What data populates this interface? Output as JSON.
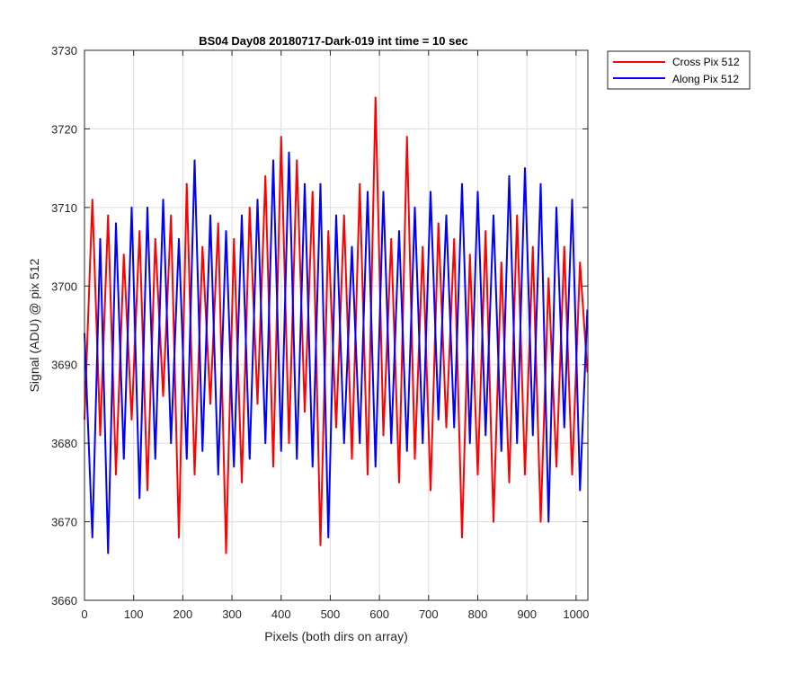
{
  "chart_data": {
    "type": "line",
    "title": "BS04 Day08 20180717-Dark-019 int time = 10 sec",
    "xlabel": "Pixels (both dirs on array)",
    "ylabel": "Signal (ADU) @ pix 512",
    "xlim": [
      0,
      1024
    ],
    "ylim": [
      3660,
      3730
    ],
    "xticks": [
      0,
      100,
      200,
      300,
      400,
      500,
      600,
      700,
      800,
      900,
      1000
    ],
    "yticks": [
      3660,
      3670,
      3680,
      3690,
      3700,
      3710,
      3720,
      3730
    ],
    "grid": true,
    "legend_position": "outside top-right",
    "sampling": "every 16th pixel (0 to 1023)",
    "series": [
      {
        "name": "Cross Pix 512",
        "color": "#ff0000",
        "x": [
          0,
          16,
          32,
          48,
          64,
          80,
          96,
          112,
          128,
          144,
          160,
          176,
          192,
          208,
          224,
          240,
          256,
          272,
          288,
          304,
          320,
          336,
          352,
          368,
          384,
          400,
          416,
          432,
          448,
          464,
          480,
          496,
          512,
          528,
          544,
          560,
          576,
          592,
          608,
          624,
          640,
          656,
          672,
          688,
          704,
          720,
          736,
          752,
          768,
          784,
          800,
          816,
          832,
          848,
          864,
          880,
          896,
          912,
          928,
          944,
          960,
          976,
          992,
          1008,
          1023
        ],
        "values": [
          3683,
          3711,
          3681,
          3709,
          3676,
          3704,
          3683,
          3707,
          3674,
          3706,
          3686,
          3709,
          3668,
          3713,
          3676,
          3705,
          3685,
          3708,
          3666,
          3706,
          3675,
          3710,
          3685,
          3714,
          3677,
          3719,
          3680,
          3716,
          3684,
          3712,
          3667,
          3707,
          3682,
          3709,
          3678,
          3713,
          3676,
          3724,
          3681,
          3706,
          3675,
          3719,
          3678,
          3705,
          3674,
          3708,
          3682,
          3706,
          3668,
          3704,
          3676,
          3707,
          3670,
          3703,
          3675,
          3709,
          3676,
          3705,
          3670,
          3701,
          3677,
          3705,
          3676,
          3703,
          3689
        ]
      },
      {
        "name": "Along Pix 512",
        "color": "#0000ff",
        "x": [
          0,
          16,
          32,
          48,
          64,
          80,
          96,
          112,
          128,
          144,
          160,
          176,
          192,
          208,
          224,
          240,
          256,
          272,
          288,
          304,
          320,
          336,
          352,
          368,
          384,
          400,
          416,
          432,
          448,
          464,
          480,
          496,
          512,
          528,
          544,
          560,
          576,
          592,
          608,
          624,
          640,
          656,
          672,
          688,
          704,
          720,
          736,
          752,
          768,
          784,
          800,
          816,
          832,
          848,
          864,
          880,
          896,
          912,
          928,
          944,
          960,
          976,
          992,
          1008,
          1023
        ],
        "values": [
          3694,
          3668,
          3706,
          3666,
          3708,
          3678,
          3710,
          3673,
          3710,
          3678,
          3711,
          3680,
          3706,
          3678,
          3716,
          3679,
          3709,
          3676,
          3707,
          3677,
          3709,
          3678,
          3711,
          3680,
          3716,
          3679,
          3717,
          3678,
          3713,
          3677,
          3713,
          3668,
          3709,
          3680,
          3705,
          3680,
          3712,
          3677,
          3712,
          3680,
          3707,
          3679,
          3710,
          3680,
          3712,
          3683,
          3709,
          3682,
          3713,
          3680,
          3712,
          3681,
          3709,
          3679,
          3714,
          3680,
          3715,
          3681,
          3713,
          3670,
          3710,
          3682,
          3711,
          3674,
          3697
        ]
      }
    ]
  }
}
